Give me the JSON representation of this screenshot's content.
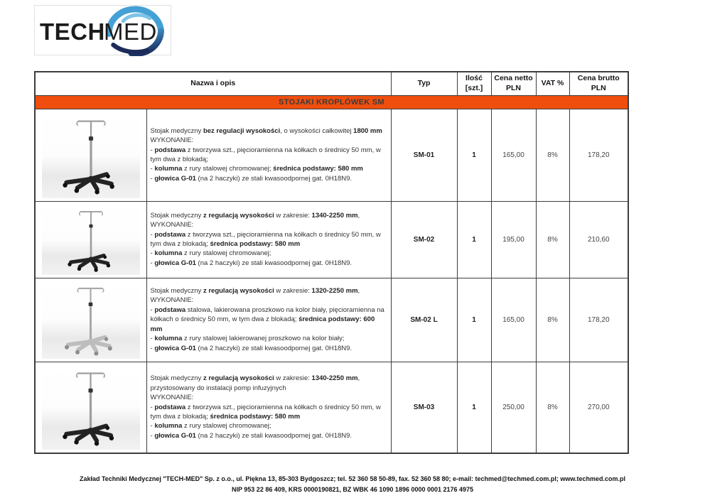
{
  "logo": {
    "tech": "TECH",
    "med": "MED"
  },
  "table": {
    "headers": {
      "name": "Nazwa i opis",
      "type": "Typ",
      "qty": "Ilość\n[szt.]",
      "net": "Cena netto\nPLN",
      "vat": "VAT %",
      "gross": "Cena brutto\nPLN"
    },
    "section": "STOJAKI KROPLÓWEK SM",
    "rows": [
      {
        "type": "SM-01",
        "qty": "1",
        "net": "165,00",
        "vat": "8%",
        "gross": "178,20",
        "image": "iv-stand-black-base",
        "desc": [
          {
            "t": "Stojak medyczny "
          },
          {
            "t": "bez regulacji wysokości",
            "b": true
          },
          {
            "t": ", o wysokości całkowitej "
          },
          {
            "t": "1800 mm",
            "b": true
          },
          {
            "br": true
          },
          {
            "t": "WYKONANIE:"
          },
          {
            "br": true
          },
          {
            "t": "- "
          },
          {
            "t": "podstawa",
            "b": true
          },
          {
            "t": " z tworzywa szt., pięcioramienna na kółkach o średnicy 50 mm, w tym dwa z blokadą;"
          },
          {
            "br": true
          },
          {
            "t": "- "
          },
          {
            "t": "kolumna",
            "b": true
          },
          {
            "t": " z rury stalowej chromowanej; "
          },
          {
            "t": "średnica podstawy: 580 mm",
            "b": true
          },
          {
            "br": true
          },
          {
            "t": "- "
          },
          {
            "t": "głowica G-01",
            "b": true
          },
          {
            "t": " (na 2 haczyki) ze stali kwasoodpornej gat. 0H18N9."
          }
        ]
      },
      {
        "type": "SM-02",
        "qty": "1",
        "net": "195,00",
        "vat": "8%",
        "gross": "210,60",
        "image": "iv-stand-black-base",
        "desc": [
          {
            "t": "Stojak medyczny "
          },
          {
            "t": "z regulacją wysokości",
            "b": true
          },
          {
            "t": " w zakresie: "
          },
          {
            "t": "1340-2250 mm",
            "b": true
          },
          {
            "t": ","
          },
          {
            "br": true
          },
          {
            "t": "WYKONANIE:"
          },
          {
            "br": true
          },
          {
            "t": "- "
          },
          {
            "t": "podstawa",
            "b": true
          },
          {
            "t": " z tworzywa szt., pięcioramienna na kółkach o średnicy 50 mm, w tym dwa z blokadą; "
          },
          {
            "t": "średnica podstawy: 580 mm",
            "b": true
          },
          {
            "br": true
          },
          {
            "t": "- "
          },
          {
            "t": "kolumna",
            "b": true
          },
          {
            "t": " z rury stalowej chromowanej;"
          },
          {
            "br": true
          },
          {
            "t": "- "
          },
          {
            "t": "głowica G-01",
            "b": true
          },
          {
            "t": " (na 2 haczyki) ze stali kwasoodpornej gat. 0H18N9."
          }
        ]
      },
      {
        "type": "SM-02 L",
        "qty": "1",
        "net": "165,00",
        "vat": "8%",
        "gross": "178,20",
        "image": "iv-stand-steel-base",
        "desc": [
          {
            "t": "Stojak medyczny "
          },
          {
            "t": "z regulacją wysokości",
            "b": true
          },
          {
            "t": " w zakresie: "
          },
          {
            "t": "1320-2250 mm",
            "b": true
          },
          {
            "t": ","
          },
          {
            "br": true
          },
          {
            "t": "WYKONANIE:"
          },
          {
            "br": true
          },
          {
            "t": "- "
          },
          {
            "t": "podstawa",
            "b": true
          },
          {
            "t": " stalowa, lakierowana proszkowo na kolor biały, pięcioramienna na kółkach o średnicy 50 mm, w tym dwa z blokadą; "
          },
          {
            "t": "średnica podstawy: 600 mm",
            "b": true
          },
          {
            "br": true
          },
          {
            "t": "- "
          },
          {
            "t": "kolumna",
            "b": true
          },
          {
            "t": " z rury stalowej lakierowanej proszkowo na kolor biały;"
          },
          {
            "br": true
          },
          {
            "t": "- "
          },
          {
            "t": "głowica G-01",
            "b": true
          },
          {
            "t": " (na 2 haczyki) ze stali kwasoodpornej gat. 0H18N9."
          }
        ]
      },
      {
        "type": "SM-03",
        "qty": "1",
        "net": "250,00",
        "vat": "8%",
        "gross": "270,00",
        "image": "iv-stand-black-base",
        "desc": [
          {
            "t": "Stojak medyczny "
          },
          {
            "t": "z regulacją wysokości",
            "b": true
          },
          {
            "t": " w zakresie: "
          },
          {
            "t": "1340-2250 mm",
            "b": true
          },
          {
            "t": ","
          },
          {
            "br": true
          },
          {
            "t": "przystosowany do instalacji pomp infuzyjnych"
          },
          {
            "br": true
          },
          {
            "t": "WYKONANIE:"
          },
          {
            "br": true
          },
          {
            "t": "- "
          },
          {
            "t": "podstawa",
            "b": true
          },
          {
            "t": " z tworzywa szt., pięcioramienna na kółkach o średnicy 50 mm, w tym dwa z blokadą; "
          },
          {
            "t": "średnica podstawy: 580 mm",
            "b": true
          },
          {
            "br": true
          },
          {
            "t": "- "
          },
          {
            "t": "kolumna",
            "b": true
          },
          {
            "t": " z rury stalowej chromowanej;"
          },
          {
            "br": true
          },
          {
            "t": "- "
          },
          {
            "t": "głowica G-01",
            "b": true
          },
          {
            "t": " (na 2 haczyki) ze stali kwasoodpornej gat. 0H18N9."
          }
        ]
      }
    ]
  },
  "footer": {
    "line1": "Zakład Techniki Medycznej \"TECH-MED\" Sp. z o.o., ul. Piękna 13, 85-303 Bydgoszcz; tel. 52 360 58 50-89, fax. 52 360 58 80; e-mail: techmed@techmed.com.pl; www.techmed.com.pl",
    "line2": "NIP 953 22 86 409, KRS 0000190821, BZ WBK 46 1090 1896 0000 0001 2176 4975"
  },
  "colors": {
    "banner_bg": "#F04E0E",
    "banner_text": "#3B3B3B",
    "border": "#3D3D3D",
    "logo_blue": "#45A1D5",
    "logo_navy": "#1C2B59"
  }
}
